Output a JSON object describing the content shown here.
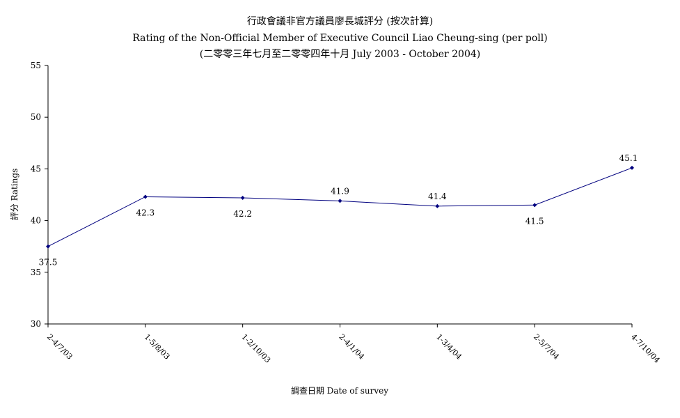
{
  "chart_data": {
    "type": "line",
    "title": "行政會議非官方議員廖長城評分 (按次計算)",
    "subtitle": "Rating of the Non-Official Member of Executive Council Liao Cheung-sing  (per poll)",
    "period": "(二零零三年七月至二零零四年十月 July 2003 - October 2004)",
    "xlabel": "調查日期 Date of survey",
    "ylabel": "評分 Ratings",
    "ylim": [
      30,
      55
    ],
    "yticks": [
      30,
      35,
      40,
      45,
      50,
      55
    ],
    "grid": false,
    "legend": "none",
    "line_color": "#00007F",
    "categories": [
      "2-4/7/03",
      "1-5/8/03",
      "1-2/10/03",
      "2-4/1/04",
      "1-3/4/04",
      "2-5/7/04",
      "4-7/10/04"
    ],
    "series": [
      {
        "values": [
          37.5,
          42.3,
          42.2,
          41.9,
          41.4,
          41.5,
          45.1
        ],
        "labels": [
          "37.5",
          "42.3",
          "42.2",
          "41.9",
          "41.4",
          "41.5",
          "45.1"
        ]
      }
    ]
  }
}
